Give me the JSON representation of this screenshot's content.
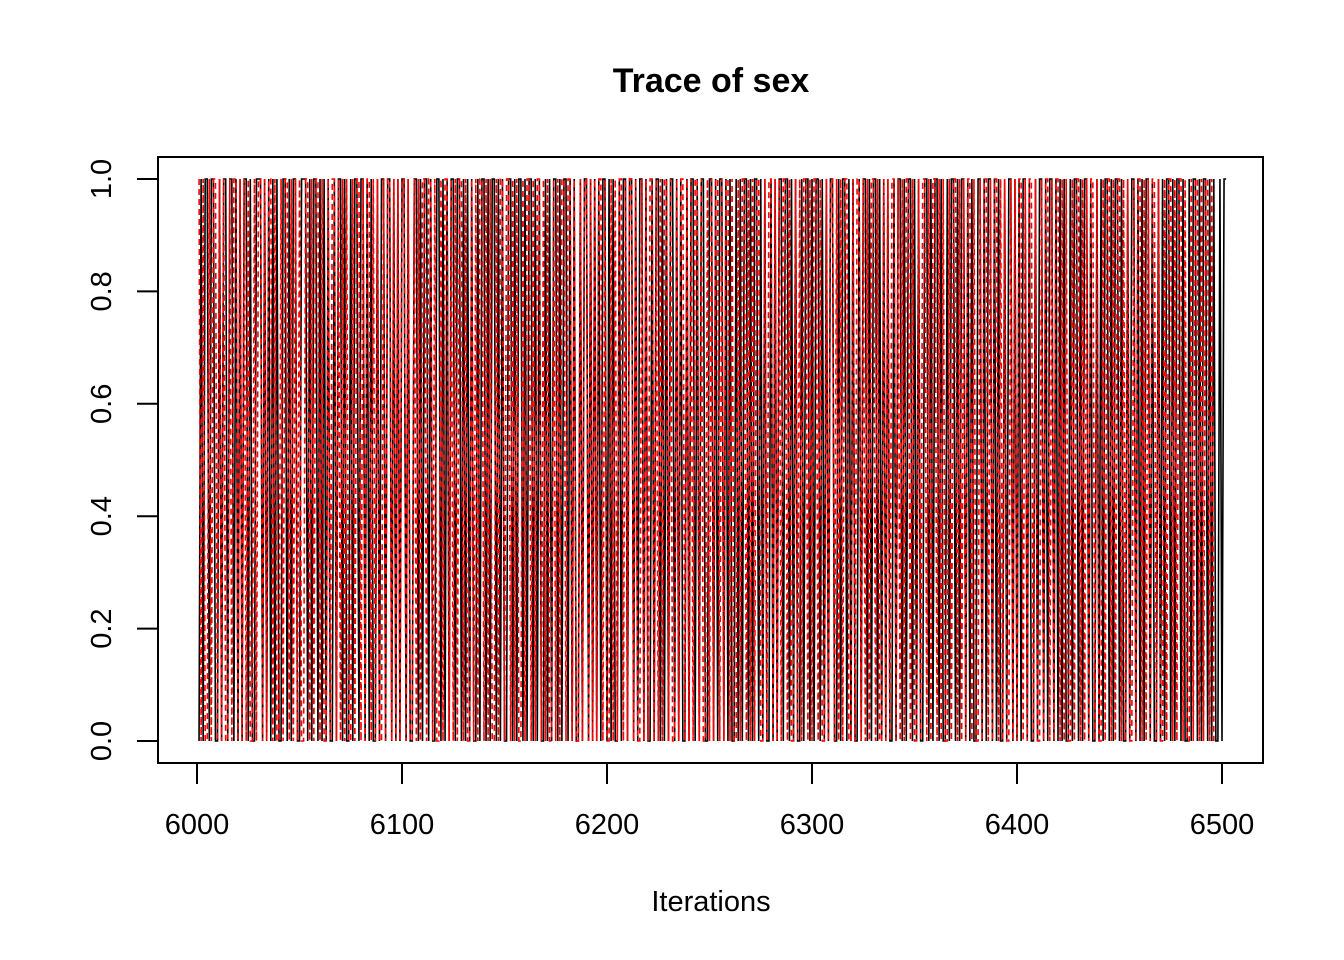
{
  "chart_data": {
    "type": "line",
    "title": "Trace of sex",
    "xlabel": "Iterations",
    "ylabel": "",
    "xlim": [
      6000,
      6500
    ],
    "ylim": [
      0.0,
      1.0
    ],
    "x_ticks": [
      6000,
      6100,
      6200,
      6300,
      6400,
      6500
    ],
    "x_tick_labels": [
      "6000",
      "6100",
      "6200",
      "6300",
      "6400",
      "6500"
    ],
    "y_ticks": [
      0.0,
      0.2,
      0.4,
      0.6,
      0.8,
      1.0
    ],
    "y_tick_labels": [
      "0.0",
      "0.2",
      "0.4",
      "0.6",
      "0.8",
      "1.0"
    ],
    "grid": false,
    "legend": "none",
    "series": [
      {
        "color": "#000000",
        "line_style": "solid",
        "x_start": 6001,
        "values": "0101101100101101101010110100111010101010011010110011101011010101001011010010110110101001011011010101101001101011010011010101101101010100101101011010100110101101011010100101011010110101001011010101011010100101101101011010010110101011010100101101011001101011010100101011010110101001010110110101001011010110101011001011010100101101011010101001011010110101001101011010010110101101010011010110101001011010101101001011010110101010010110101101001010110101101001011010101101001010110101101001011010110101001011"
      },
      {
        "color": "#ff0000",
        "line_style": "dashed",
        "x_start": 6001,
        "values": "1010010110101001011010101001011010110100101101010100110101101001011010101001011010110101001011010101101001010110110100101101010110100101011010100101101101010010110101101010010101101101001011010101101001010110101101001010110101011010010110101011010010101101011010010110101011001011010101101001010110101101001011010101100101101010110100101011010101101001011010110101001011010101101001011010110101001010110101101001011010110101001011010101101001011010110101001011010101101001011010110100101101011010"
      }
    ]
  }
}
